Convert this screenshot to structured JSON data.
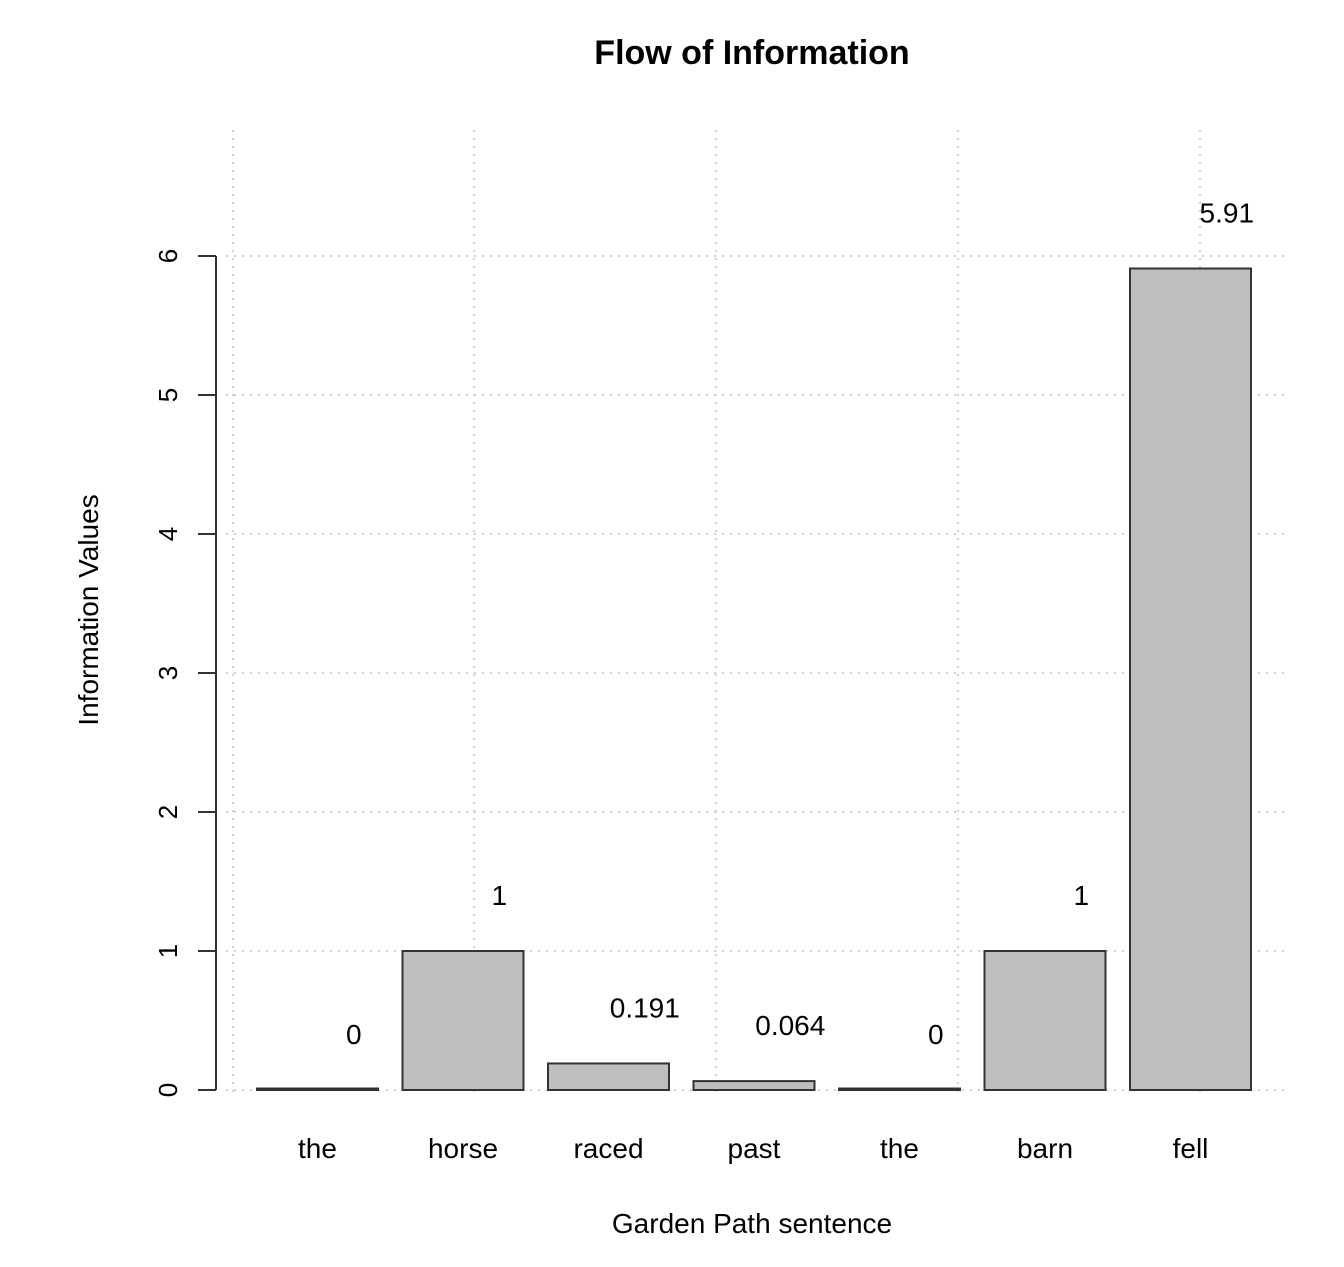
{
  "chart_data": {
    "type": "bar",
    "title": "Flow of Information",
    "xlabel": "Garden Path sentence",
    "ylabel": "Information Values",
    "categories": [
      "the",
      "horse",
      "raced",
      "past",
      "the",
      "barn",
      "fell"
    ],
    "values": [
      0,
      1,
      0.191,
      0.064,
      0,
      1,
      5.91
    ],
    "data_labels": [
      "0",
      "1",
      "0.191",
      "0.064",
      "0",
      "1",
      "5.91"
    ],
    "yticks": [
      0,
      1,
      2,
      3,
      4,
      5,
      6
    ],
    "ytick_labels": [
      "0",
      "1",
      "2",
      "3",
      "4",
      "5",
      "6"
    ],
    "ylim": [
      0,
      6
    ],
    "grid": true,
    "grid_style": "dotted",
    "colors": {
      "bar_fill": "#bebebe",
      "bar_stroke": "#333333",
      "grid": "#d0d0d0",
      "axis": "#333333"
    }
  }
}
